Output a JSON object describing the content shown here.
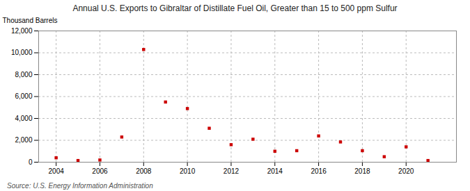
{
  "chart_data": {
    "type": "scatter",
    "title": "Annual U.S. Exports to Gibraltar of Distillate Fuel Oil, Greater than 15 to 500 ppm Sulfur",
    "ylabel": "Thousand Barrels",
    "source": "Source: U.S. Energy Information Administration",
    "x": [
      2004,
      2005,
      2006,
      2007,
      2008,
      2009,
      2010,
      2011,
      2012,
      2013,
      2014,
      2015,
      2016,
      2017,
      2018,
      2019,
      2020,
      2021
    ],
    "values": [
      400,
      150,
      200,
      2300,
      10300,
      5500,
      4900,
      3100,
      1600,
      2100,
      1000,
      1050,
      2400,
      1850,
      1050,
      500,
      1400,
      150
    ],
    "color": "#cc0000",
    "marker": "square",
    "xlim": [
      2003.2,
      2022.3
    ],
    "xticks": [
      2004,
      2006,
      2008,
      2010,
      2012,
      2014,
      2016,
      2018,
      2020
    ],
    "ylim": [
      0,
      12000
    ],
    "yticks": [
      0,
      {
        "value": 2000,
        "label": "2,000"
      },
      {
        "value": 4000,
        "label": "4,000"
      },
      {
        "value": 6000,
        "label": "6,000"
      },
      {
        "value": 8000,
        "label": "8,000"
      },
      {
        "value": 10000,
        "label": "10,000"
      },
      {
        "value": 12000,
        "label": "12,000"
      }
    ],
    "grid": true
  }
}
